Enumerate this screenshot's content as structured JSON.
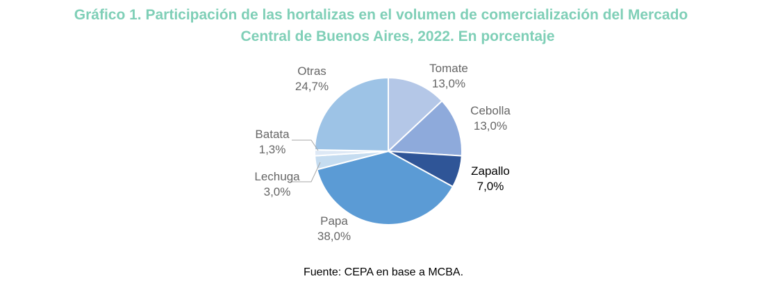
{
  "chart_data": {
    "type": "pie",
    "title_lines": [
      "Gráfico 1. Participación de las hortalizas en el volumen de comercialización del Mercado",
      "Central de Buenos Aires, 2022. En porcentaje"
    ],
    "source": "Fuente: CEPA en base a MCBA.",
    "slices": [
      {
        "name": "Tomate",
        "value": 13.0,
        "label": "13,0%",
        "color": "#b4c7e7"
      },
      {
        "name": "Cebolla",
        "value": 13.0,
        "label": "13,0%",
        "color": "#8eaadb"
      },
      {
        "name": "Zapallo",
        "value": 7.0,
        "label": "7,0%",
        "color": "#2f5597"
      },
      {
        "name": "Papa",
        "value": 38.0,
        "label": "38,0%",
        "color": "#5b9bd5"
      },
      {
        "name": "Lechuga",
        "value": 3.0,
        "label": "3,0%",
        "color": "#c5dcf0"
      },
      {
        "name": "Batata",
        "value": 1.3,
        "label": "1,3%",
        "color": "#dde8f5"
      },
      {
        "name": "Otras",
        "value": 24.7,
        "label": "24,7%",
        "color": "#9dc3e6"
      }
    ],
    "legend": "none",
    "label_color": "#666666",
    "highlight_label_color": "#000000",
    "title_color": "#7fcfb7"
  }
}
